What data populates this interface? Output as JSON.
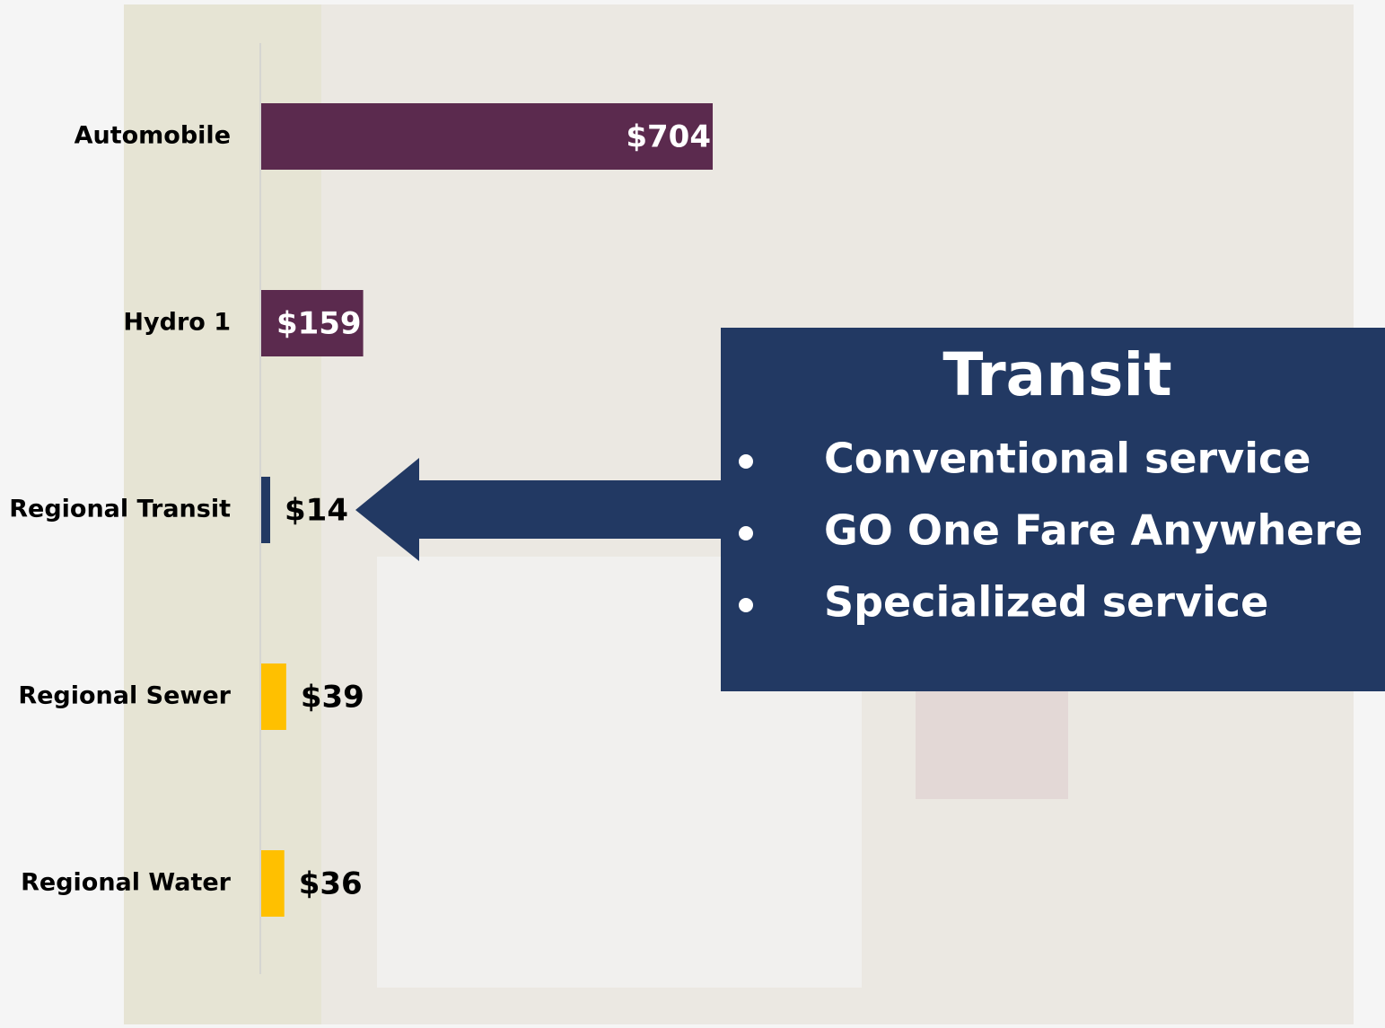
{
  "chart_data": {
    "type": "bar",
    "orientation": "horizontal",
    "categories": [
      "Automobile",
      "Hydro 1",
      "Regional Transit",
      "Regional Sewer",
      "Regional Water"
    ],
    "values": [
      704,
      159,
      14,
      39,
      36
    ],
    "value_labels": [
      "$704",
      "$159",
      "$14",
      "$39",
      "$36"
    ],
    "colors": [
      "#5b2a4e",
      "#5b2a4e",
      "#223963",
      "#ffc000",
      "#ffc000"
    ]
  },
  "callout": {
    "title": "Transit",
    "items": [
      "Conventional service",
      "GO One Fare Anywhere",
      "Specialized service"
    ]
  }
}
